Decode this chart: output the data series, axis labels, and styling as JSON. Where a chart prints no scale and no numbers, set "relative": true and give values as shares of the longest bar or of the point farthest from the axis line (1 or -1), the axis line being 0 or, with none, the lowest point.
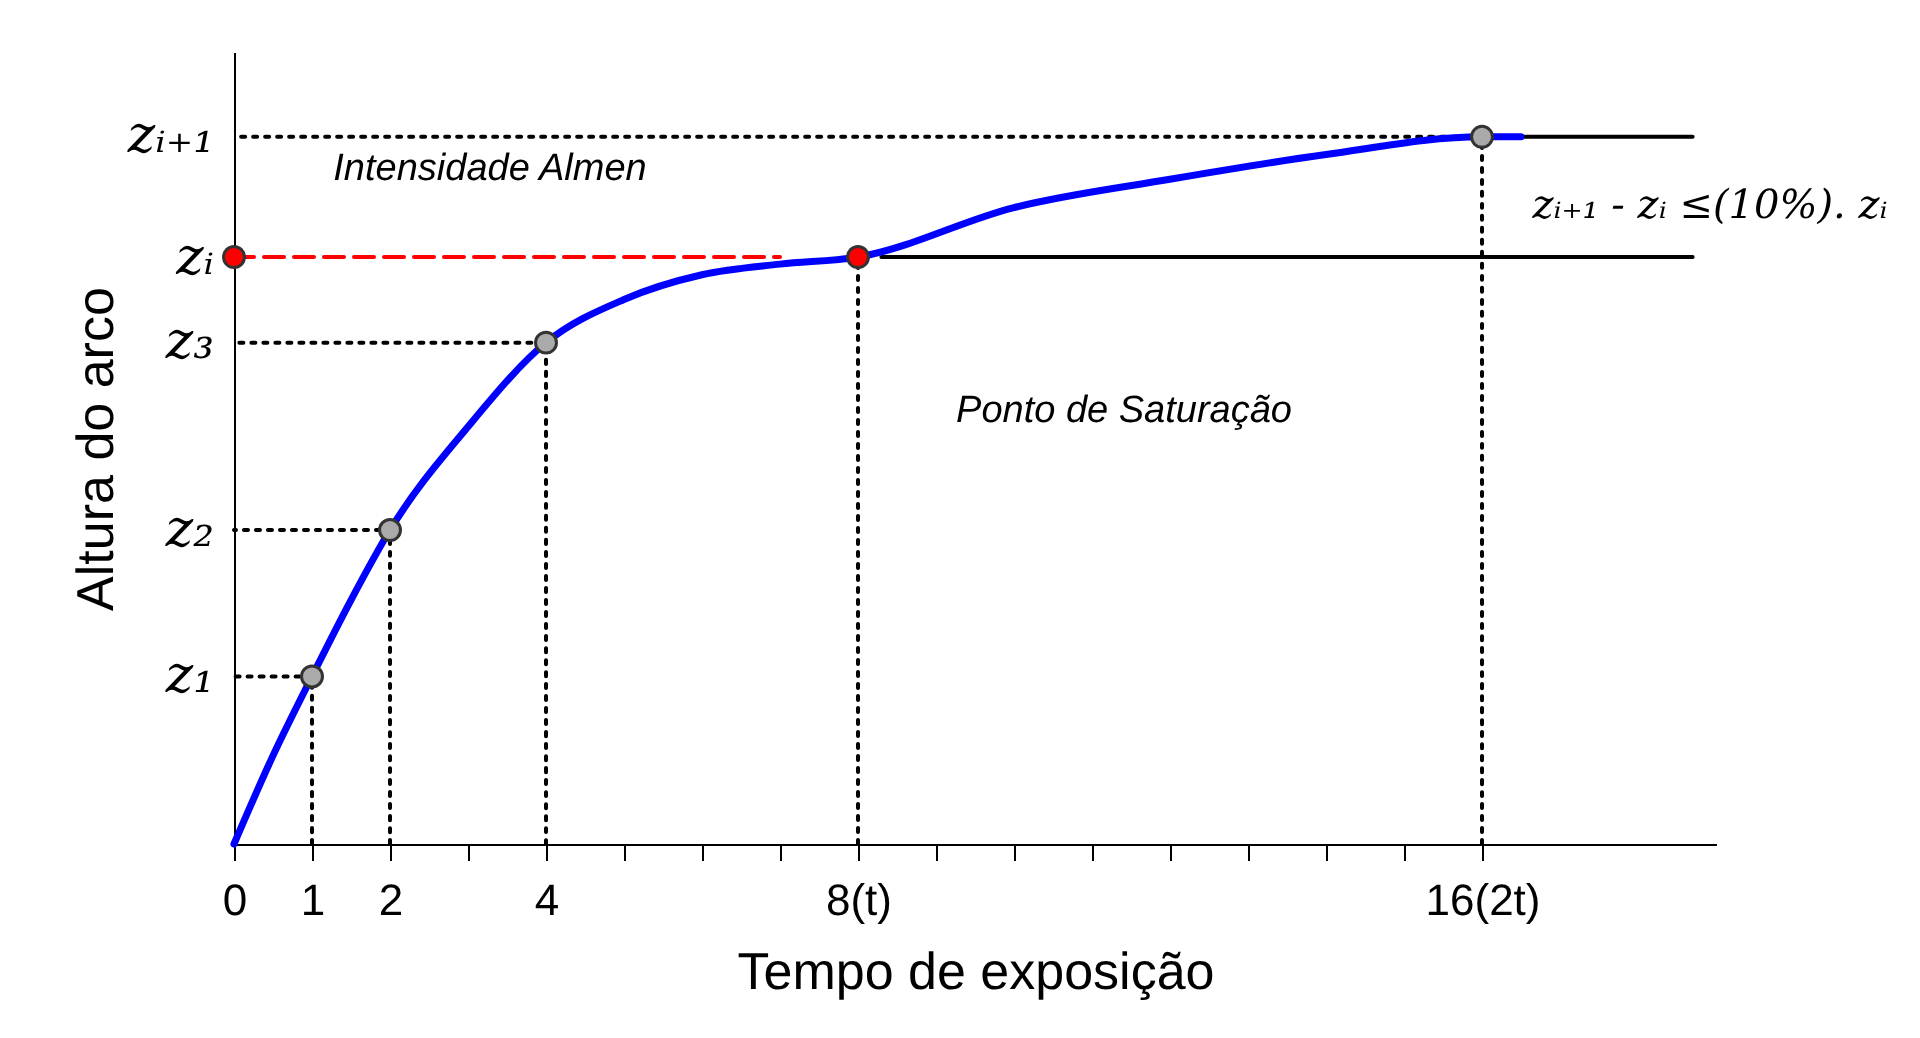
{
  "chart_data": {
    "type": "line",
    "relative": true,
    "xlabel": "Tempo de exposição",
    "ylabel": "Altura do arco",
    "xlim": [
      0,
      19
    ],
    "xticks": [
      0,
      1,
      2,
      {
        "value": 3,
        "label": null
      },
      4,
      {
        "value": 5,
        "label": null
      },
      {
        "value": 6,
        "label": null
      },
      {
        "value": 7,
        "label": null
      },
      {
        "value": 8,
        "label": "8(t)"
      },
      {
        "value": 9,
        "label": null
      },
      {
        "value": 10,
        "label": null
      },
      {
        "value": 11,
        "label": null
      },
      {
        "value": 12,
        "label": null
      },
      {
        "value": 13,
        "label": null
      },
      {
        "value": 14,
        "label": null
      },
      {
        "value": 15,
        "label": null
      },
      {
        "value": 16,
        "label": "16(2t)"
      }
    ],
    "series": [
      {
        "color": "#000000",
        "line_style": "dotted",
        "x": [
          1,
          1,
          0
        ],
        "values": [
          0,
          0.237,
          0.237
        ]
      },
      {
        "color": "#000000",
        "line_style": "dotted",
        "x": [
          2,
          2,
          0
        ],
        "values": [
          0,
          0.444,
          0.444
        ]
      },
      {
        "color": "#000000",
        "line_style": "dotted",
        "x": [
          4,
          4,
          0
        ],
        "values": [
          0,
          0.709,
          0.709
        ]
      },
      {
        "color": "#000000",
        "line_style": "dotted",
        "x": [
          16,
          16,
          0
        ],
        "values": [
          0,
          1.0,
          1.0
        ]
      },
      {
        "color": "#000000",
        "line_style": "dotted",
        "x": [
          8,
          8
        ],
        "values": [
          0,
          0.83
        ]
      },
      {
        "color": "#ff0000",
        "line_style": "dashed",
        "x": [
          0,
          7
        ],
        "values": [
          0.83,
          0.83
        ]
      },
      {
        "color": "#000000",
        "line_style": "solid",
        "x": [
          8.3,
          18.7
        ],
        "values": [
          0.83,
          0.83
        ]
      },
      {
        "color": "#000000",
        "line_style": "solid",
        "x": [
          16.5,
          18.7
        ],
        "values": [
          1.0,
          1.0
        ]
      },
      {
        "color": "#0000ff",
        "line_style": "solid",
        "x": [
          0,
          0.5,
          1,
          1.5,
          2,
          3,
          4,
          5,
          6,
          7,
          8,
          10,
          12,
          14,
          16,
          16.5
        ],
        "values": [
          0,
          0.125,
          0.237,
          0.345,
          0.444,
          0.59,
          0.709,
          0.77,
          0.805,
          0.82,
          0.83,
          0.9,
          0.94,
          0.975,
          1.0,
          1.0
        ]
      },
      {
        "type": "scatter",
        "color": "#aaaaaa",
        "marker": "circle",
        "x": [
          1,
          2,
          4,
          16
        ],
        "values": [
          0.237,
          0.444,
          0.709,
          1.0
        ]
      },
      {
        "type": "scatter",
        "color": "#ff0000",
        "marker": "circle",
        "x": [
          0,
          8
        ],
        "values": [
          0.83,
          0.83
        ]
      }
    ],
    "annotations": [
      "z₁",
      "z₂",
      "z₃",
      "zᵢ",
      "zᵢ₊₁",
      "Intensidade Almen",
      "Ponto de Saturação",
      "zᵢ₊₁ - zᵢ ≤(10%). zᵢ"
    ]
  }
}
